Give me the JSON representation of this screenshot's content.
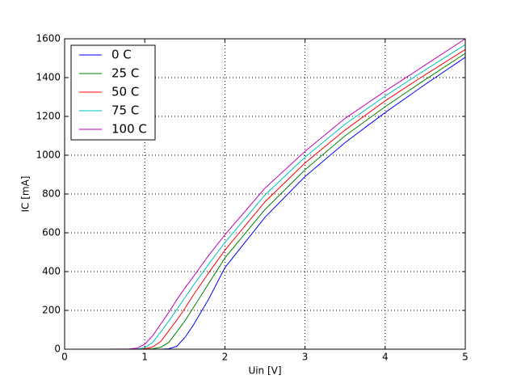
{
  "chart_data": {
    "type": "line",
    "xlabel": "Uin [V]",
    "ylabel": "IC [mA]",
    "x": [
      0,
      0.5,
      0.8,
      0.9,
      1.0,
      1.1,
      1.2,
      1.3,
      1.4,
      1.5,
      1.6,
      1.8,
      2.0,
      2.5,
      3.0,
      3.5,
      4.0,
      4.5,
      5.0
    ],
    "series": [
      {
        "name": "0 C",
        "color": "#0000ff",
        "values": [
          0,
          0,
          0,
          0,
          0,
          0,
          0,
          2,
          15,
          60,
          120,
          260,
          420,
          680,
          890,
          1065,
          1220,
          1365,
          1505
        ]
      },
      {
        "name": "25 C",
        "color": "#008000",
        "values": [
          0,
          0,
          0,
          0,
          0,
          2,
          10,
          35,
          90,
          145,
          210,
          340,
          470,
          720,
          925,
          1100,
          1250,
          1390,
          1525
        ]
      },
      {
        "name": "50 C",
        "color": "#ff0000",
        "values": [
          0,
          0,
          0,
          0,
          2,
          12,
          40,
          95,
          150,
          210,
          275,
          395,
          510,
          760,
          960,
          1130,
          1280,
          1415,
          1545
        ]
      },
      {
        "name": "75 C",
        "color": "#00bfbf",
        "values": [
          0,
          0,
          0,
          1,
          8,
          35,
          90,
          145,
          205,
          265,
          325,
          440,
          550,
          795,
          990,
          1160,
          1305,
          1440,
          1570
        ]
      },
      {
        "name": "100 C",
        "color": "#bf00bf",
        "values": [
          0,
          0,
          1,
          5,
          25,
          70,
          130,
          190,
          255,
          315,
          370,
          485,
          590,
          830,
          1020,
          1190,
          1330,
          1465,
          1600
        ]
      }
    ],
    "xlim": [
      0,
      5
    ],
    "xticks": [
      0,
      1,
      2,
      3,
      4,
      5
    ],
    "ylim": [
      0,
      1600
    ],
    "yticks": [
      0,
      200,
      400,
      600,
      800,
      1000,
      1200,
      1400,
      1600
    ],
    "grid": true,
    "legend": "upper left"
  }
}
